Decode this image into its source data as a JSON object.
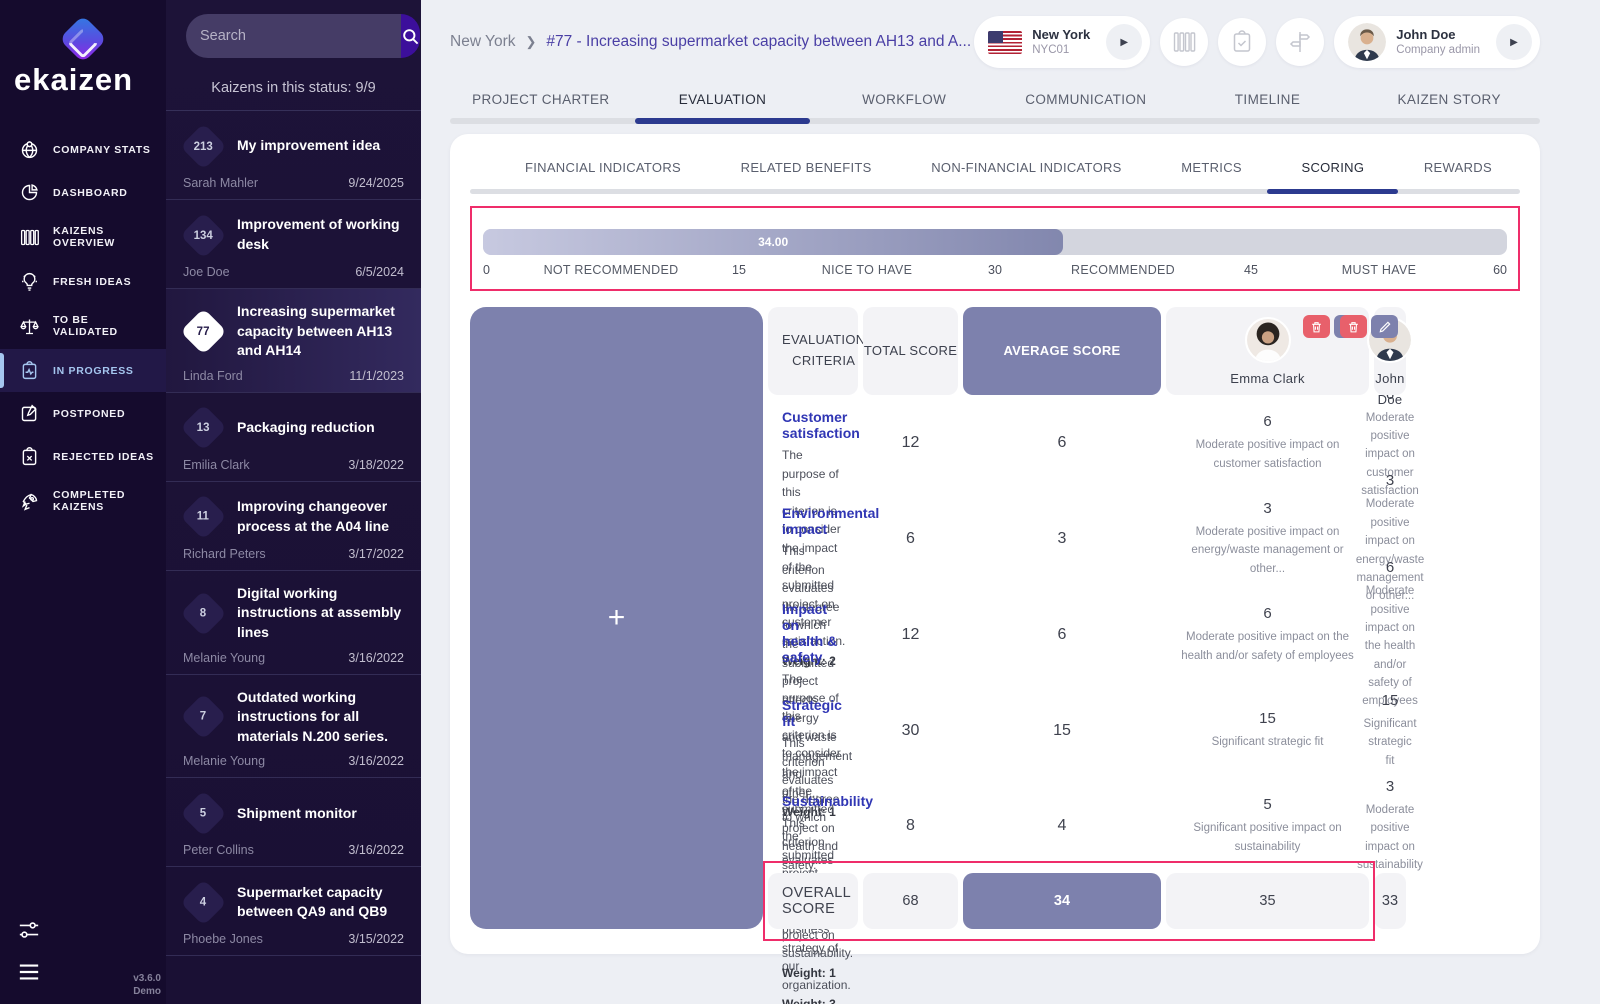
{
  "app": {
    "logo_text": "ekaizen",
    "version": "v3.6.0",
    "edition": "Demo"
  },
  "sidebar": {
    "search_placeholder": "Search",
    "status_count_label": "Kaizens in this status: 9/9",
    "menu": [
      {
        "icon": "globe-pin-icon",
        "label": "COMPANY STATS"
      },
      {
        "icon": "pie-chart-icon",
        "label": "DASHBOARD"
      },
      {
        "icon": "kanban-columns-icon",
        "label": "KAIZENS OVERVIEW"
      },
      {
        "icon": "lightbulb-icon",
        "label": "FRESH IDEAS"
      },
      {
        "icon": "balance-scale-icon",
        "label": "TO BE VALIDATED"
      },
      {
        "icon": "clipboard-pulse-icon",
        "label": "IN PROGRESS",
        "active": true
      },
      {
        "icon": "note-pin-icon",
        "label": "POSTPONED"
      },
      {
        "icon": "clipboard-x-icon",
        "label": "REJECTED IDEAS"
      },
      {
        "icon": "rocket-icon",
        "label": "COMPLETED KAIZENS"
      }
    ],
    "kaizens": [
      {
        "id": "213",
        "title": "My improvement idea",
        "author": "Sarah Mahler",
        "date": "9/24/2025"
      },
      {
        "id": "134",
        "title": "Improvement of working desk",
        "author": "Joe Doe",
        "date": "6/5/2024"
      },
      {
        "id": "77",
        "title": "Increasing supermarket capacity between AH13 and AH14",
        "author": "Linda Ford",
        "date": "11/1/2023",
        "selected": true
      },
      {
        "id": "13",
        "title": "Packaging reduction",
        "author": "Emilia Clark",
        "date": "3/18/2022"
      },
      {
        "id": "11",
        "title": "Improving changeover process at the A04 line",
        "author": "Richard Peters",
        "date": "3/17/2022"
      },
      {
        "id": "8",
        "title": "Digital working instructions at assembly lines",
        "author": "Melanie Young",
        "date": "3/16/2022"
      },
      {
        "id": "7",
        "title": "Outdated working instructions for all materials N.200 series.",
        "author": "Melanie Young",
        "date": "3/16/2022"
      },
      {
        "id": "5",
        "title": "Shipment monitor",
        "author": "Peter Collins",
        "date": "3/16/2022"
      },
      {
        "id": "4",
        "title": "Supermarket capacity between QA9 and QB9",
        "author": "Phoebe Jones",
        "date": "3/15/2022"
      }
    ]
  },
  "header": {
    "breadcrumb_root": "New York",
    "breadcrumb_sep": "❯",
    "breadcrumb_current": "#77 - Increasing supermarket capacity between AH13 and A...",
    "site": {
      "name": "New York",
      "code": "NYC01"
    },
    "user": {
      "name": "John Doe",
      "role": "Company admin"
    }
  },
  "tabs": {
    "items": [
      {
        "label": "PROJECT CHARTER"
      },
      {
        "label": "EVALUATION",
        "active": true
      },
      {
        "label": "WORKFLOW"
      },
      {
        "label": "COMMUNICATION"
      },
      {
        "label": "TIMELINE"
      },
      {
        "label": "KAIZEN STORY"
      }
    ]
  },
  "subtabs": {
    "items": [
      {
        "label": "FINANCIAL INDICATORS"
      },
      {
        "label": "RELATED BENEFITS"
      },
      {
        "label": "NON-FINANCIAL INDICATORS"
      },
      {
        "label": "METRICS"
      },
      {
        "label": "SCORING",
        "active": true
      },
      {
        "label": "REWARDS"
      }
    ]
  },
  "scoring_bar": {
    "value": 34,
    "max": 60,
    "value_label": "34.00",
    "ticks": [
      "0",
      "15",
      "30",
      "45",
      "60"
    ],
    "zones": [
      "NOT RECOMMENDED",
      "NICE TO HAVE",
      "RECOMMENDED",
      "MUST HAVE"
    ]
  },
  "table": {
    "criteria_header": "EVALUATION CRITERIA",
    "total_header": "TOTAL SCORE",
    "average_header": "AVERAGE SCORE",
    "evaluators": [
      {
        "name": "Emma Clark",
        "actions": [
          "delete",
          "view"
        ]
      },
      {
        "name": "John Doe",
        "actions": [
          "delete",
          "edit"
        ]
      }
    ],
    "rows": [
      {
        "title": "Customer satisfaction",
        "description": "The purpose of this criterion is to consider the impact of the submitted project on customer satisfaction.",
        "weight": "Weight: 2",
        "total": "12",
        "average": "6",
        "scores": [
          {
            "value": "6",
            "note": "Moderate positive impact on customer satisfaction"
          },
          {
            "value": "6",
            "note": "Moderate positive impact on customer satisfaction"
          }
        ]
      },
      {
        "title": "Environmental impact",
        "description": "This criterion evaluates the degree to which the submitted project affects energy and waste management and other...",
        "weight": "Weight: 1",
        "total": "6",
        "average": "3",
        "scores": [
          {
            "value": "3",
            "note": "Moderate positive impact on energy/waste management or other..."
          },
          {
            "value": "3",
            "note": "Moderate positive impact on energy/waste management or other..."
          }
        ]
      },
      {
        "title": "Impact on health & safety",
        "description": "The purpose of this criterion is to consider the impact of the submitted project on health and safety.",
        "weight": "Weight: 2",
        "total": "12",
        "average": "6",
        "scores": [
          {
            "value": "6",
            "note": "Moderate positive impact on the health and/or safety of employees"
          },
          {
            "value": "6",
            "note": "Moderate positive impact on the health and/or safety of employees"
          }
        ]
      },
      {
        "title": "Strategic fit",
        "description": "This criterion evaluates the degree to which the submitted project matches the business strategy of our organization.",
        "weight": "Weight: 3",
        "total": "30",
        "average": "15",
        "scores": [
          {
            "value": "15",
            "note": "Significant strategic fit"
          },
          {
            "value": "15",
            "note": "Significant strategic fit"
          }
        ]
      },
      {
        "title": "Sustainability",
        "description": "This criterion evaluates the impact of the submitted project on sustainability.",
        "weight": "Weight: 1",
        "total": "8",
        "average": "4",
        "scores": [
          {
            "value": "5",
            "note": "Significant positive impact on sustainability"
          },
          {
            "value": "3",
            "note": "Moderate positive impact on sustainability"
          }
        ]
      }
    ],
    "overall": {
      "label": "OVERALL SCORE",
      "total": "68",
      "average": "34",
      "scores": [
        "35",
        "33"
      ]
    }
  },
  "colors": {
    "sidebar_bg": "#150b2d",
    "panel_bg": "#1d1338",
    "accent_purple": "#7d81ad",
    "tab_indicator": "#2c3a8f",
    "annotation_pink": "#ef2d6a",
    "delete_red": "#e8606b",
    "search_button": "#3c0f9b",
    "criterion_link": "#3036b4",
    "active_item_blue": "#a5c6ef"
  }
}
